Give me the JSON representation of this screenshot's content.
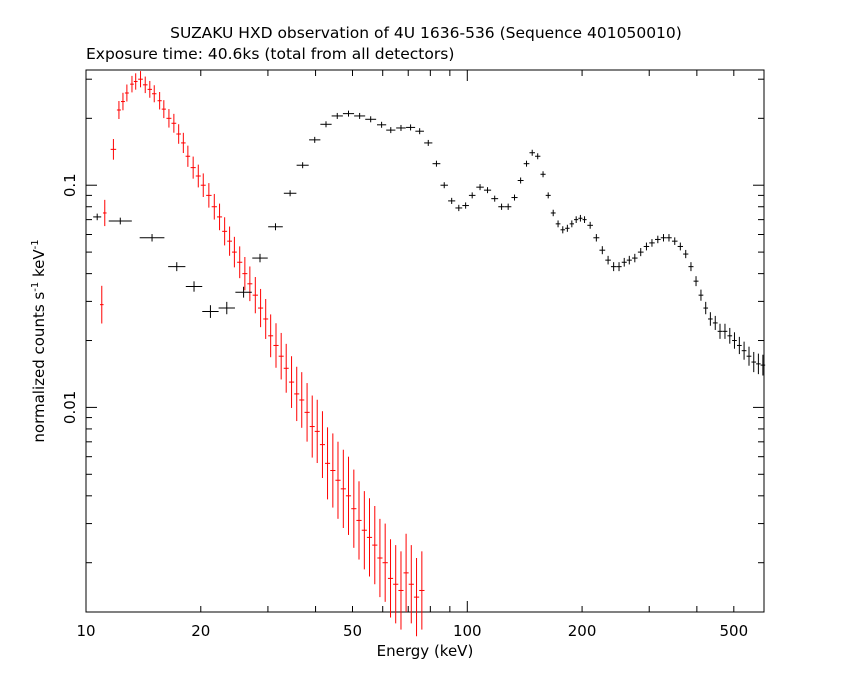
{
  "chart_data": {
    "type": "scatter",
    "title": "SUZAKU HXD observation of 4U 1636-536 (Sequence 401050010)",
    "subtitle": "Exposure time: 40.6ks (total from all detectors)",
    "xlabel": "Energy (keV)",
    "ylabel_base": "normalized counts s",
    "ylabel_exp1": "-1",
    "ylabel_mid": " keV",
    "ylabel_exp2": "-1",
    "x_scale": "log",
    "y_scale": "log",
    "xlim": [
      10,
      600
    ],
    "ylim": [
      0.0012,
      0.33
    ],
    "x_ticks": [
      {
        "value": 10,
        "label": "10"
      },
      {
        "value": 20,
        "label": "20"
      },
      {
        "value": 50,
        "label": "50"
      },
      {
        "value": 100,
        "label": "100"
      },
      {
        "value": 200,
        "label": "200"
      },
      {
        "value": 500,
        "label": "500"
      }
    ],
    "y_ticks": [
      {
        "value": 0.01,
        "label": "0.01"
      },
      {
        "value": 0.1,
        "label": "0.1"
      }
    ],
    "grid": false,
    "colors": {
      "pin": "#ff0000",
      "gso": "#000000"
    },
    "series": [
      {
        "detector": "pin",
        "color": "#ff0000",
        "points": [
          [
            11.0,
            0.029
          ],
          [
            11.2,
            0.075
          ],
          [
            11.8,
            0.145
          ],
          [
            12.2,
            0.218
          ],
          [
            12.5,
            0.238
          ],
          [
            12.8,
            0.26
          ],
          [
            13.2,
            0.285
          ],
          [
            13.5,
            0.293
          ],
          [
            13.9,
            0.3
          ],
          [
            14.3,
            0.283
          ],
          [
            14.7,
            0.27
          ],
          [
            15.1,
            0.258
          ],
          [
            15.6,
            0.24
          ],
          [
            16.0,
            0.22
          ],
          [
            16.5,
            0.2
          ],
          [
            17.0,
            0.19
          ],
          [
            17.5,
            0.17
          ],
          [
            18.0,
            0.155
          ],
          [
            18.5,
            0.135
          ],
          [
            19.1,
            0.12
          ],
          [
            19.7,
            0.11
          ],
          [
            20.3,
            0.1
          ],
          [
            21.0,
            0.09
          ],
          [
            21.7,
            0.08
          ],
          [
            22.4,
            0.072
          ],
          [
            23.1,
            0.062
          ],
          [
            23.8,
            0.056
          ],
          [
            24.5,
            0.05
          ],
          [
            25.3,
            0.045
          ],
          [
            26.1,
            0.04
          ],
          [
            26.9,
            0.036
          ],
          [
            27.8,
            0.032
          ],
          [
            28.7,
            0.028
          ],
          [
            29.6,
            0.025
          ],
          [
            30.5,
            0.021
          ],
          [
            31.5,
            0.019
          ],
          [
            32.5,
            0.017
          ],
          [
            33.5,
            0.015
          ],
          [
            34.6,
            0.013
          ],
          [
            35.7,
            0.0115
          ],
          [
            36.8,
            0.0108
          ],
          [
            38.0,
            0.0095
          ],
          [
            39.2,
            0.0082
          ],
          [
            40.4,
            0.0078
          ],
          [
            41.7,
            0.0068
          ],
          [
            43.0,
            0.0056
          ],
          [
            44.4,
            0.0052
          ],
          [
            45.8,
            0.0047
          ],
          [
            47.3,
            0.0043
          ],
          [
            48.8,
            0.004
          ],
          [
            50.4,
            0.0035
          ],
          [
            52.0,
            0.0031
          ],
          [
            53.7,
            0.0028
          ],
          [
            55.4,
            0.0026
          ],
          [
            57.2,
            0.0024
          ],
          [
            59.0,
            0.0021
          ],
          [
            60.9,
            0.002
          ],
          [
            62.9,
            0.0017
          ],
          [
            64.9,
            0.0016
          ],
          [
            67.0,
            0.0015
          ],
          [
            69.1,
            0.0018
          ],
          [
            71.3,
            0.0016
          ],
          [
            73.6,
            0.0014
          ],
          [
            76.0,
            0.0015
          ]
        ]
      },
      {
        "detector": "gso",
        "color": "#000000",
        "points": [
          [
            10.7,
            0.072
          ],
          [
            12.3,
            0.069
          ],
          [
            14.9,
            0.058
          ],
          [
            17.3,
            0.043
          ],
          [
            19.2,
            0.035
          ],
          [
            21.2,
            0.027
          ],
          [
            23.4,
            0.028
          ],
          [
            25.9,
            0.033
          ],
          [
            28.6,
            0.047
          ],
          [
            31.4,
            0.065
          ],
          [
            34.3,
            0.092
          ],
          [
            37.0,
            0.123
          ],
          [
            39.8,
            0.16
          ],
          [
            42.6,
            0.188
          ],
          [
            45.6,
            0.205
          ],
          [
            48.8,
            0.21
          ],
          [
            52.2,
            0.205
          ],
          [
            55.8,
            0.198
          ],
          [
            59.6,
            0.187
          ],
          [
            63.0,
            0.177
          ],
          [
            67.0,
            0.181
          ],
          [
            71.0,
            0.182
          ],
          [
            75.0,
            0.175
          ],
          [
            79.0,
            0.155
          ],
          [
            83.0,
            0.125
          ],
          [
            87.0,
            0.1
          ],
          [
            91.0,
            0.085
          ],
          [
            95.0,
            0.079
          ],
          [
            99.0,
            0.081
          ],
          [
            103.0,
            0.09
          ],
          [
            108.0,
            0.098
          ],
          [
            113.0,
            0.095
          ],
          [
            118.0,
            0.087
          ],
          [
            123.0,
            0.08
          ],
          [
            128.0,
            0.08
          ],
          [
            133.0,
            0.088
          ],
          [
            138.0,
            0.105
          ],
          [
            143.0,
            0.125
          ],
          [
            148.0,
            0.14
          ],
          [
            153.0,
            0.135
          ],
          [
            158.0,
            0.112
          ],
          [
            163.0,
            0.09
          ],
          [
            168.0,
            0.075
          ],
          [
            173.0,
            0.067
          ],
          [
            178.0,
            0.063
          ],
          [
            183.0,
            0.064
          ],
          [
            188.0,
            0.067
          ],
          [
            193.0,
            0.07
          ],
          [
            198.0,
            0.071
          ],
          [
            203.0,
            0.07
          ],
          [
            210.0,
            0.066
          ],
          [
            218.0,
            0.058
          ],
          [
            226.0,
            0.051
          ],
          [
            234.0,
            0.046
          ],
          [
            242.0,
            0.043
          ],
          [
            250.0,
            0.043
          ],
          [
            258.0,
            0.045
          ],
          [
            266.0,
            0.046
          ],
          [
            275.0,
            0.047
          ],
          [
            285.0,
            0.05
          ],
          [
            295.0,
            0.053
          ],
          [
            305.0,
            0.055
          ],
          [
            316.0,
            0.057
          ],
          [
            327.0,
            0.058
          ],
          [
            338.0,
            0.058
          ],
          [
            350.0,
            0.056
          ],
          [
            362.0,
            0.053
          ],
          [
            374.0,
            0.049
          ],
          [
            386.0,
            0.043
          ],
          [
            398.0,
            0.037
          ],
          [
            410.0,
            0.032
          ],
          [
            422.0,
            0.028
          ],
          [
            434.0,
            0.025
          ],
          [
            447.0,
            0.024
          ],
          [
            460.0,
            0.022
          ],
          [
            474.0,
            0.022
          ],
          [
            488.0,
            0.021
          ],
          [
            502.0,
            0.02
          ],
          [
            517.0,
            0.019
          ],
          [
            532.0,
            0.018
          ],
          [
            548.0,
            0.017
          ],
          [
            564.0,
            0.016
          ],
          [
            580.0,
            0.0157
          ],
          [
            596.0,
            0.0155
          ]
        ]
      }
    ]
  }
}
